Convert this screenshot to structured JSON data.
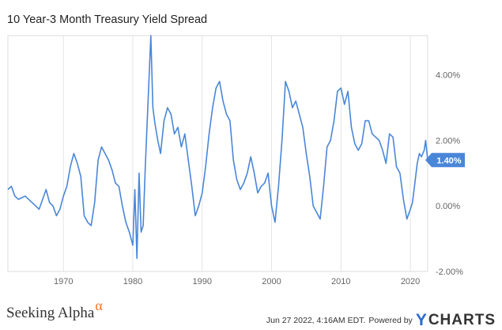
{
  "chart_data": {
    "type": "line",
    "title": "10 Year-3 Month Treasury Yield Spread",
    "xlabel": "",
    "ylabel": "",
    "xlim": [
      1962.0,
      2022.5
    ],
    "ylim": [
      -2.0,
      5.2
    ],
    "y_ticks": [
      4.0,
      2.0,
      0.0,
      -2.0
    ],
    "y_tick_labels": [
      "4.00%",
      "2.00%",
      "0.00%",
      "-2.00%"
    ],
    "x_ticks": [
      1970,
      1980,
      1990,
      2000,
      2010,
      2020
    ],
    "x_tick_labels": [
      "1970",
      "1980",
      "1990",
      "2000",
      "2010",
      "2020"
    ],
    "grid": "vertical",
    "series": [
      {
        "color": "#4a86d8",
        "last_value_label": "1.40%",
        "x": [
          1962.0,
          1962.5,
          1963.0,
          1963.5,
          1964.0,
          1964.5,
          1965.0,
          1965.5,
          1966.0,
          1966.5,
          1967.0,
          1967.5,
          1968.0,
          1968.5,
          1969.0,
          1969.5,
          1970.0,
          1970.5,
          1971.0,
          1971.5,
          1972.0,
          1972.5,
          1973.0,
          1973.5,
          1974.0,
          1974.5,
          1975.0,
          1975.5,
          1976.0,
          1976.5,
          1977.0,
          1977.5,
          1978.0,
          1978.5,
          1979.0,
          1979.5,
          1980.0,
          1980.3,
          1980.6,
          1980.9,
          1981.2,
          1981.5,
          1981.8,
          1982.2,
          1982.6,
          1982.9,
          1983.2,
          1983.6,
          1984.0,
          1984.5,
          1985.0,
          1985.5,
          1986.0,
          1986.5,
          1987.0,
          1987.5,
          1988.0,
          1988.5,
          1989.0,
          1989.5,
          1990.0,
          1990.5,
          1991.0,
          1991.5,
          1992.0,
          1992.5,
          1993.0,
          1993.5,
          1994.0,
          1994.5,
          1995.0,
          1995.5,
          1996.0,
          1996.5,
          1997.0,
          1997.5,
          1998.0,
          1998.5,
          1999.0,
          1999.5,
          2000.0,
          2000.5,
          2001.0,
          2001.5,
          2002.0,
          2002.5,
          2003.0,
          2003.5,
          2004.0,
          2004.5,
          2005.0,
          2005.5,
          2006.0,
          2006.5,
          2007.0,
          2007.5,
          2008.0,
          2008.5,
          2009.0,
          2009.5,
          2010.0,
          2010.5,
          2011.0,
          2011.5,
          2012.0,
          2012.5,
          2013.0,
          2013.5,
          2014.0,
          2014.5,
          2015.0,
          2015.5,
          2016.0,
          2016.5,
          2017.0,
          2017.5,
          2018.0,
          2018.5,
          2019.0,
          2019.5,
          2020.0,
          2020.3,
          2020.6,
          2021.0,
          2021.3,
          2021.6,
          2022.0,
          2022.2,
          2022.5
        ],
        "y": [
          0.5,
          0.6,
          0.3,
          0.2,
          0.25,
          0.3,
          0.2,
          0.1,
          0.0,
          -0.1,
          0.2,
          0.5,
          0.1,
          0.0,
          -0.3,
          -0.1,
          0.3,
          0.6,
          1.2,
          1.6,
          1.3,
          0.9,
          -0.3,
          -0.5,
          -0.6,
          0.1,
          1.4,
          1.8,
          1.6,
          1.4,
          1.1,
          0.7,
          0.6,
          0.0,
          -0.5,
          -0.8,
          -1.2,
          0.5,
          -1.6,
          1.0,
          -0.8,
          -0.6,
          1.2,
          3.2,
          5.2,
          3.0,
          2.5,
          2.0,
          1.6,
          2.6,
          3.0,
          2.8,
          2.2,
          2.4,
          1.8,
          2.2,
          1.4,
          0.6,
          -0.3,
          0.0,
          0.4,
          1.2,
          2.2,
          3.0,
          3.6,
          3.8,
          3.2,
          2.8,
          2.6,
          1.4,
          0.8,
          0.5,
          0.7,
          1.0,
          1.5,
          1.0,
          0.4,
          0.6,
          0.7,
          1.0,
          0.0,
          -0.5,
          0.6,
          2.0,
          3.8,
          3.5,
          3.0,
          3.2,
          2.8,
          2.4,
          1.6,
          0.9,
          0.0,
          -0.2,
          -0.4,
          0.6,
          1.8,
          2.0,
          2.6,
          3.5,
          3.6,
          3.1,
          3.5,
          2.4,
          1.9,
          1.7,
          1.9,
          2.6,
          2.6,
          2.2,
          2.1,
          2.0,
          1.7,
          1.3,
          2.2,
          2.1,
          1.2,
          1.0,
          0.2,
          -0.4,
          -0.1,
          0.1,
          0.6,
          1.3,
          1.6,
          1.5,
          1.7,
          2.0,
          1.4
        ]
      }
    ]
  },
  "branding": {
    "left_logo": "Seeking Alpha",
    "left_logo_symbol": "α",
    "timestamp": "Jun 27 2022, 4:16AM EDT.",
    "powered_by": "Powered by",
    "ycharts_y": "Y",
    "ycharts_rest": "CHARTS"
  }
}
